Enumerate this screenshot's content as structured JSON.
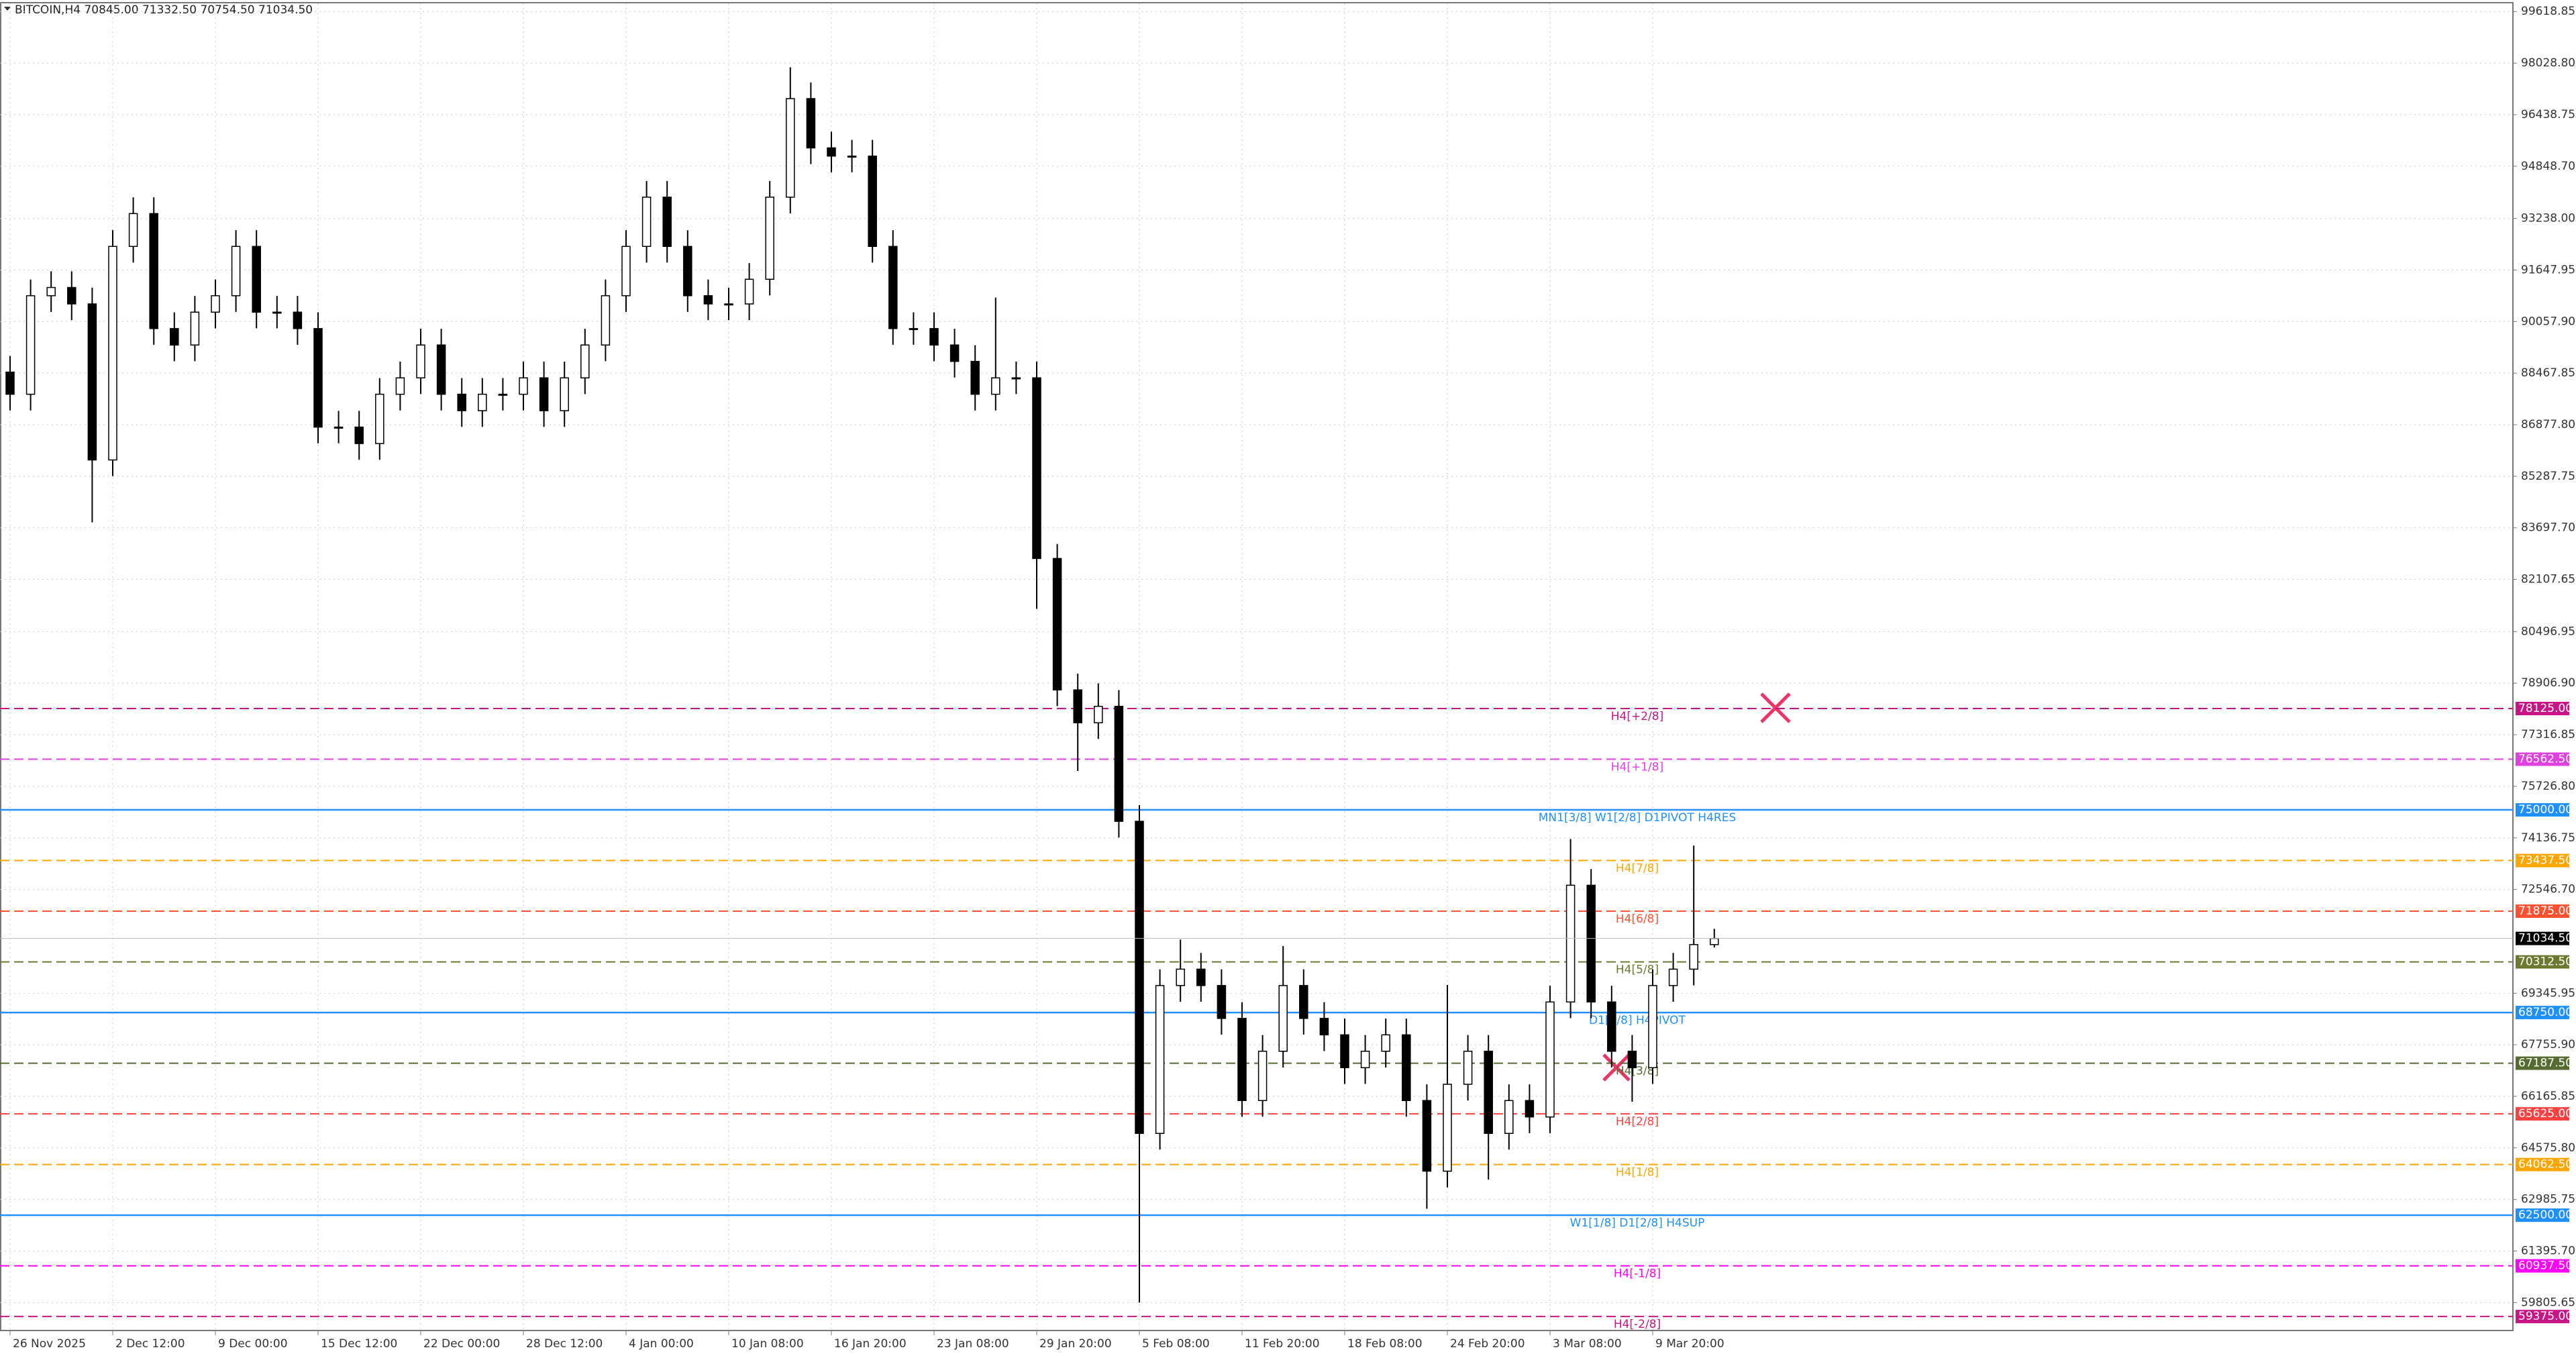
{
  "chart_data": {
    "type": "candlestick",
    "title": "BITCOIN,H4  70845.00 71332.50 70754.50 71034.50",
    "categories": [
      "26 Nov 2025",
      null,
      null,
      null,
      null,
      "2 Dec 12:00",
      null,
      null,
      null,
      null,
      "9 Dec 00:00",
      null,
      null,
      null,
      null,
      "15 Dec 12:00",
      null,
      null,
      null,
      null,
      "22 Dec 00:00",
      null,
      null,
      null,
      null,
      "28 Dec 12:00",
      null,
      null,
      null,
      null,
      "4 Jan 00:00",
      null,
      null,
      null,
      null,
      "10 Jan 08:00",
      null,
      null,
      null,
      null,
      "16 Jan 20:00",
      null,
      null,
      null,
      null,
      "23 Jan 08:00",
      null,
      null,
      null,
      null,
      "29 Jan 20:00",
      null,
      null,
      null,
      null,
      "5 Feb 08:00",
      null,
      null,
      null,
      null,
      "11 Feb 20:00",
      null,
      null,
      null,
      null,
      "18 Feb 08:00",
      null,
      null,
      null,
      null,
      "24 Feb 20:00",
      null,
      null,
      null,
      null,
      "3 Mar 08:00",
      null,
      null,
      null,
      null,
      "9 Mar 20:00",
      null,
      null,
      null
    ],
    "open": [
      88500,
      87817,
      90856,
      91109,
      90603,
      85791,
      92376,
      93389,
      89843,
      89336,
      90349,
      90856,
      92376,
      90349,
      90349,
      89843,
      86804,
      86804,
      86297,
      87817,
      88323,
      89336,
      87817,
      87310,
      87817,
      87817,
      88323,
      87310,
      88323,
      89336,
      90856,
      92376,
      93895,
      92376,
      90856,
      90603,
      90603,
      91363,
      93895,
      96934,
      95415,
      95162,
      95162,
      92376,
      89843,
      89843,
      89336,
      88830,
      87817,
      88323,
      88323,
      82752,
      78699,
      77686,
      78193,
      74647,
      65023,
      69582,
      70088,
      69582,
      68569,
      66036,
      67556,
      69582,
      68569,
      68062,
      67049,
      67556,
      68062,
      66036,
      63858,
      66537,
      67556,
      65023,
      66036,
      65529,
      69076,
      72675,
      69076,
      67556,
      67049,
      69582,
      70088,
      70845
    ],
    "high": [
      89000,
      91356,
      91609,
      91609,
      91103,
      92876,
      93889,
      93889,
      90343,
      90849,
      91356,
      92876,
      92876,
      90849,
      90849,
      90343,
      87304,
      87304,
      88317,
      88823,
      89836,
      89836,
      88317,
      88317,
      88317,
      88823,
      88823,
      88823,
      89836,
      91356,
      92876,
      94395,
      94395,
      92876,
      91356,
      91103,
      91863,
      94395,
      97900,
      97434,
      95915,
      95662,
      95662,
      92876,
      90343,
      90343,
      89836,
      89330,
      90800,
      88823,
      88823,
      83200,
      79199,
      78900,
      78693,
      75147,
      70082,
      71000,
      70588,
      70082,
      69069,
      68056,
      70800,
      70082,
      69069,
      68562,
      68056,
      68562,
      68562,
      66536,
      69600,
      68056,
      68056,
      66536,
      66536,
      69576,
      74100,
      73175,
      69576,
      68056,
      70082,
      70588,
      73900,
      71332.5
    ],
    "low": [
      87317,
      87317,
      90356,
      90103,
      83866,
      85291,
      91876,
      89343,
      88836,
      88836,
      89849,
      90356,
      89849,
      89849,
      89343,
      86304,
      86304,
      85797,
      85797,
      87317,
      87823,
      87317,
      86810,
      86810,
      87317,
      87317,
      86810,
      86810,
      87823,
      88836,
      90356,
      91876,
      91876,
      90356,
      90103,
      90103,
      90103,
      90863,
      93395,
      94915,
      94662,
      94662,
      91876,
      89343,
      89343,
      88836,
      88330,
      87317,
      87317,
      87823,
      81200,
      78199,
      76200,
      77186,
      74147,
      59805,
      64523,
      69082,
      69082,
      68069,
      65536,
      65536,
      67056,
      68069,
      67562,
      66549,
      66549,
      67056,
      65536,
      62700,
      63358,
      66037,
      63600,
      64523,
      65029,
      65029,
      68576,
      68576,
      67056,
      66000,
      66549,
      69082,
      69588,
      70754.5
    ],
    "close": [
      87817,
      90856,
      91109,
      90603,
      85791,
      92376,
      93389,
      89843,
      89336,
      90349,
      90856,
      92376,
      90349,
      90349,
      89843,
      86804,
      86804,
      86297,
      87817,
      88323,
      89336,
      87817,
      87310,
      87817,
      87817,
      88323,
      87310,
      88323,
      89336,
      90856,
      92376,
      93895,
      92376,
      90856,
      90603,
      90603,
      91363,
      93895,
      96934,
      95415,
      95162,
      95162,
      92376,
      89843,
      89843,
      89336,
      88830,
      87817,
      88323,
      88323,
      82752,
      78699,
      77686,
      78193,
      74647,
      65023,
      69582,
      70088,
      69582,
      68569,
      66036,
      67556,
      69582,
      68569,
      68062,
      67049,
      67556,
      68062,
      66036,
      63858,
      66537,
      67556,
      65023,
      66036,
      65529,
      69076,
      72675,
      69076,
      67556,
      67049,
      69582,
      70088,
      70845,
      71034.5
    ],
    "color_up": "#ffffff",
    "color_down": "#000000",
    "ylim": [
      58944,
      99872
    ],
    "yticks": [
      {
        "value": 99618.85,
        "label": "99618.85"
      },
      {
        "value": 98028.8,
        "label": "98028.80"
      },
      {
        "value": 96438.75,
        "label": "96438.75"
      },
      {
        "value": 94848.7,
        "label": "94848.70"
      },
      {
        "value": 93238,
        "label": "93238.00"
      },
      {
        "value": 91647.95,
        "label": "91647.95"
      },
      {
        "value": 90057.9,
        "label": "90057.90"
      },
      {
        "value": 88467.85,
        "label": "88467.85"
      },
      {
        "value": 86877.8,
        "label": "86877.80"
      },
      {
        "value": 85287.75,
        "label": "85287.75"
      },
      {
        "value": 83697.7,
        "label": "83697.70"
      },
      {
        "value": 82107.65,
        "label": "82107.65"
      },
      {
        "value": 80496.95,
        "label": "80496.95"
      },
      {
        "value": 78906.9,
        "label": "78906.90"
      },
      {
        "value": 77316.85,
        "label": "77316.85"
      },
      {
        "value": 75726.8,
        "label": "75726.80"
      },
      {
        "value": 74136.75,
        "label": "74136.75"
      },
      {
        "value": 72546.7,
        "label": "72546.70"
      },
      {
        "value": 69345.95,
        "label": "69345.95"
      },
      {
        "value": 67755.9,
        "label": "67755.90"
      },
      {
        "value": 66165.85,
        "label": "66165.85"
      },
      {
        "value": 64575.8,
        "label": "64575.80"
      },
      {
        "value": 62985.75,
        "label": "62985.75"
      },
      {
        "value": 61395.7,
        "label": "61395.70"
      },
      {
        "value": 59805.65,
        "label": "59805.65"
      }
    ],
    "grid": true,
    "levels": [
      {
        "text": "H4[+2/8]",
        "price": {
          "value": 78125,
          "label": "78125.00"
        },
        "color": "#c71585",
        "dashed": true
      },
      {
        "text": "H4[+1/8]",
        "price": {
          "value": 76562.5,
          "label": "76562.50"
        },
        "color": "#e040e0",
        "dashed": true
      },
      {
        "text": "MN1[3/8] W1[2/8] D1PIVOT H4RES",
        "price": {
          "value": 75000,
          "label": "75000.00"
        },
        "color": "#1e90ff",
        "dashed": false
      },
      {
        "text": "H4[7/8]",
        "price": {
          "value": 73437.5,
          "label": "73437.50"
        },
        "color": "#ffa500",
        "dashed": true
      },
      {
        "text": "H4[6/8]",
        "price": {
          "value": 71875,
          "label": "71875.00"
        },
        "color": "#ff5030",
        "dashed": true
      },
      {
        "text": "H4[5/8]",
        "price": {
          "value": 70312.5,
          "label": "70312.50"
        },
        "color": "#6b7a2f",
        "dashed": true
      },
      {
        "text": "D1[3/8] H4PIVOT",
        "price": {
          "value": 68750,
          "label": "68750.00"
        },
        "color": "#1e90ff",
        "dashed": false
      },
      {
        "text": "H4[3/8]",
        "price": {
          "value": 67187.5,
          "label": "67187.50"
        },
        "color": "#556b2f",
        "dashed": true
      },
      {
        "text": "H4[2/8]",
        "price": {
          "value": 65625,
          "label": "65625.00"
        },
        "color": "#ff4040",
        "dashed": true
      },
      {
        "text": "H4[1/8]",
        "price": {
          "value": 64062.5,
          "label": "64062.50"
        },
        "color": "#ffa500",
        "dashed": true
      },
      {
        "text": "W1[1/8] D1[2/8] H4SUP",
        "price": {
          "value": 62500,
          "label": "62500.00"
        },
        "color": "#1e90ff",
        "dashed": false
      },
      {
        "text": "H4[-1/8]",
        "price": {
          "value": 60937.5,
          "label": "60937.50"
        },
        "color": "#ff00ff",
        "dashed": true
      },
      {
        "text": "H4[-2/8]",
        "price": {
          "value": 59375,
          "label": "59375.00"
        },
        "color": "#c71585",
        "dashed": true
      }
    ],
    "last_price": {
      "value": 71034.5,
      "label": "71034.50"
    }
  }
}
